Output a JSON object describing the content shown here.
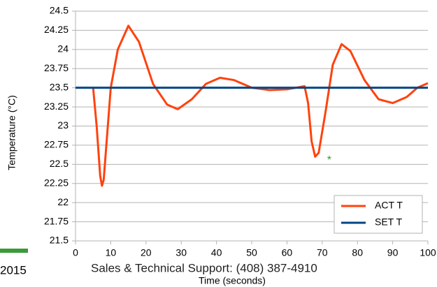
{
  "chart_data": {
    "type": "line",
    "y_label": "Temperature (°C)",
    "x_label": "Time (seconds)",
    "series": [
      {
        "name": "ACT T",
        "color": "#ff420e",
        "x": [
          5,
          6,
          7,
          7.5,
          8,
          9,
          10,
          12,
          15,
          18,
          22,
          26,
          29,
          33,
          37,
          41,
          45,
          50,
          55,
          60,
          65,
          66,
          67,
          68,
          69,
          71,
          73,
          75.5,
          78,
          82,
          86,
          90,
          94,
          97,
          100
        ],
        "values": [
          23.5,
          23.0,
          22.35,
          22.22,
          22.3,
          22.9,
          23.5,
          24.0,
          24.31,
          24.1,
          23.55,
          23.28,
          23.22,
          23.35,
          23.55,
          23.63,
          23.6,
          23.5,
          23.47,
          23.48,
          23.52,
          23.3,
          22.8,
          22.6,
          22.65,
          23.2,
          23.8,
          24.07,
          23.98,
          23.6,
          23.35,
          23.3,
          23.38,
          23.5,
          23.56
        ]
      },
      {
        "name": "SET T",
        "color": "#004586",
        "x": [
          0,
          100
        ],
        "values": [
          23.5,
          23.5
        ]
      }
    ],
    "annotation": {
      "text": "*",
      "x": 72,
      "y": 22.55,
      "color": "#2ca02c"
    },
    "xlim": [
      0,
      100
    ],
    "xticks": [
      0,
      10,
      20,
      30,
      40,
      50,
      60,
      70,
      80,
      90,
      100
    ],
    "ylim": [
      21.5,
      24.5
    ],
    "yticks": [
      21.5,
      21.75,
      22,
      22.25,
      22.5,
      22.75,
      23,
      23.25,
      23.5,
      23.75,
      24,
      24.25,
      24.5
    ],
    "grid": true,
    "legend": "lower right"
  },
  "footer": {
    "year": "2015",
    "support": "Sales & Technical Support: (408) 387-4910"
  }
}
